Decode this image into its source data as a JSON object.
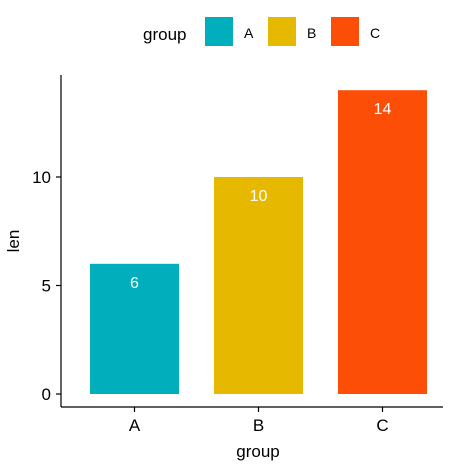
{
  "chart_data": {
    "type": "bar",
    "categories": [
      "A",
      "B",
      "C"
    ],
    "values": [
      6,
      10,
      14
    ],
    "data_labels": [
      "6",
      "10",
      "14"
    ],
    "colors": [
      "#00AFBB",
      "#E7B800",
      "#FC4E07"
    ],
    "xlabel": "group",
    "ylabel": "len",
    "ylim": [
      0,
      14.7
    ],
    "yticks": [
      0,
      5,
      10
    ],
    "ytick_labels": [
      "0",
      "5",
      "10"
    ],
    "grid": false,
    "legend": {
      "title": "group",
      "position": "top",
      "entries": [
        "A",
        "B",
        "C"
      ]
    }
  }
}
